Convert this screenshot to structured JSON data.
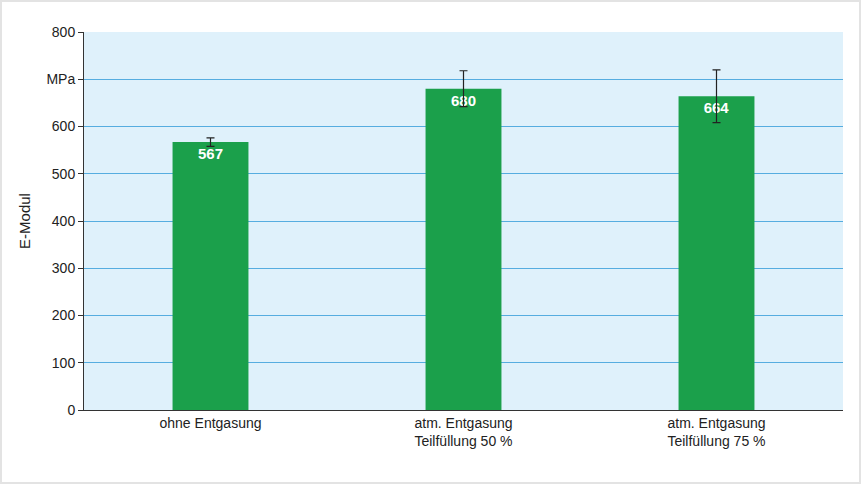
{
  "chart_data": {
    "type": "bar",
    "y_label": "E-Modul",
    "categories": [
      "ohne Entgasung",
      "atm. Entgasung\nTeilfüllung 50 %",
      "atm. Entgasung\nTeilfüllung 75 %"
    ],
    "values": [
      567,
      680,
      664
    ],
    "errors": [
      9,
      38,
      56
    ],
    "color": "#1ba04b",
    "data_labels": true,
    "ylim": [
      0,
      800
    ],
    "yticks": [
      0,
      100,
      200,
      300,
      400,
      500,
      600,
      {
        "value": 700,
        "label": "MPa"
      },
      800
    ],
    "grid": true
  }
}
